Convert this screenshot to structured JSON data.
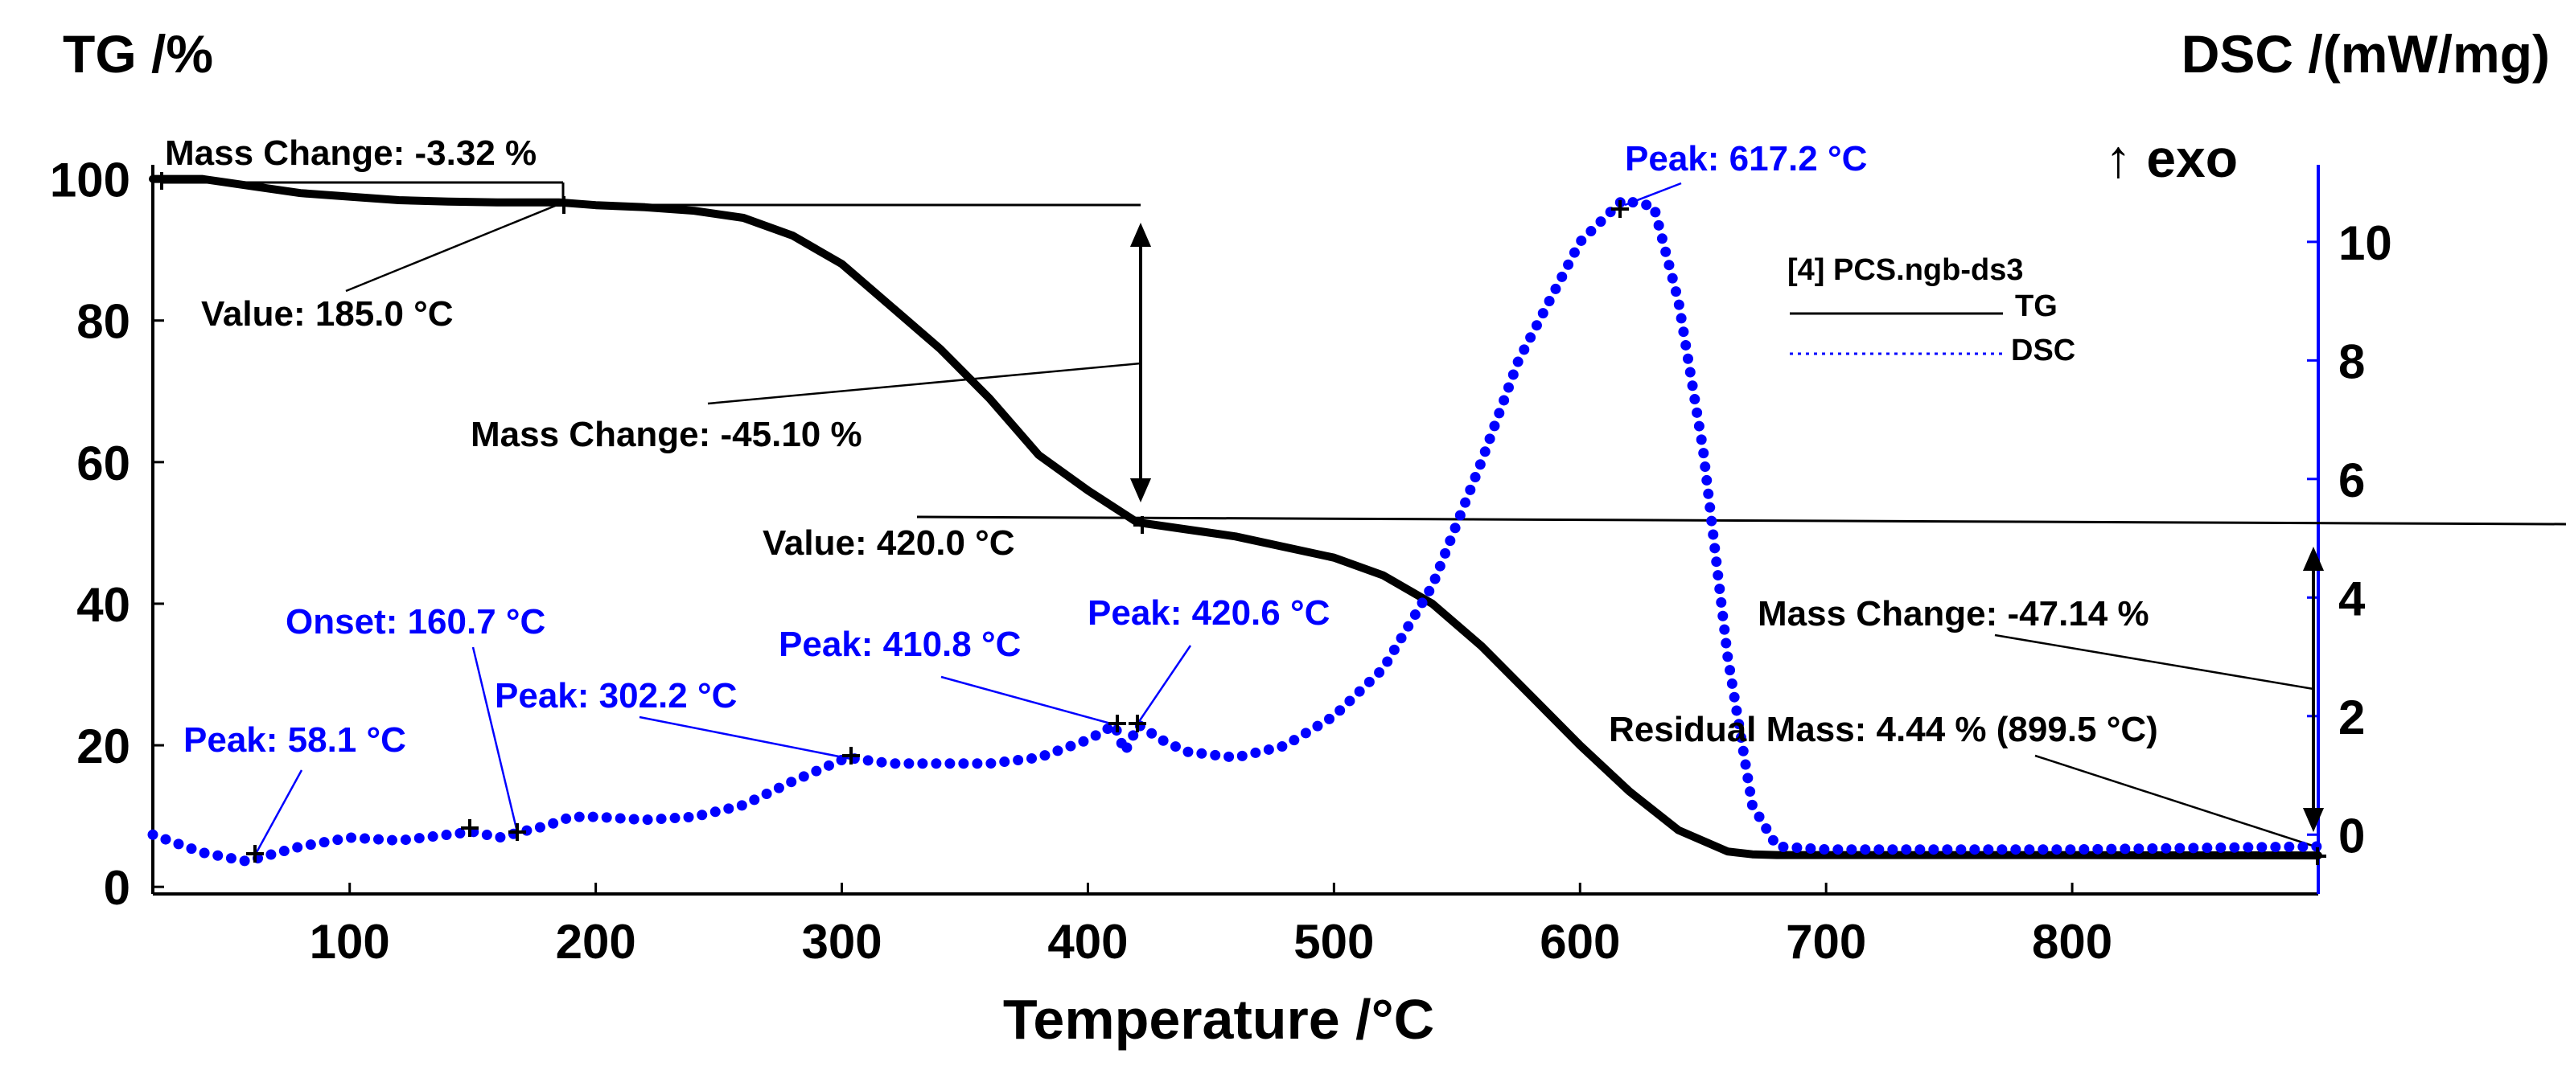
{
  "chart_data": {
    "type": "line",
    "title": "",
    "xlabel": "Temperature /°C",
    "ylabel_left": "TG /%",
    "ylabel_right": "DSC /(mW/mg)",
    "exo_label": "↑ exo",
    "xlim": [
      20,
      900
    ],
    "ylim_left": [
      -1,
      102
    ],
    "ylim_right": [
      -1.0,
      11.3
    ],
    "x_ticks": [
      100,
      200,
      300,
      400,
      500,
      600,
      700,
      800
    ],
    "x_tick_labels": [
      "100",
      "200",
      "300",
      "400",
      "500",
      "600",
      "700",
      "800"
    ],
    "y_left_ticks": [
      0,
      20,
      40,
      60,
      80,
      100
    ],
    "y_left_tick_labels": [
      "0",
      "20",
      "40",
      "60",
      "80",
      "100"
    ],
    "y_right_ticks": [
      0,
      2,
      4,
      6,
      8,
      10
    ],
    "y_right_tick_labels": [
      "0",
      "2",
      "4",
      "6",
      "8",
      "10"
    ],
    "legend": {
      "title": "[4] PCS.ngb-ds3",
      "entries": [
        {
          "name": "TG",
          "style": "solid",
          "color": "#000000"
        },
        {
          "name": "DSC",
          "style": "dotted",
          "color": "#0000ff"
        }
      ]
    },
    "series": [
      {
        "name": "TG",
        "axis": "left",
        "color": "#000000",
        "x": [
          20,
          40,
          60,
          80,
          100,
          120,
          140,
          160,
          185,
          200,
          220,
          240,
          260,
          280,
          300,
          320,
          340,
          360,
          380,
          400,
          420,
          440,
          460,
          480,
          500,
          520,
          540,
          560,
          580,
          600,
          620,
          640,
          660,
          670,
          680,
          700,
          750,
          800,
          850,
          900
        ],
        "values": [
          100,
          100,
          99,
          98,
          97.5,
          97,
          96.8,
          96.7,
          96.7,
          96.3,
          96,
          95.5,
          94.5,
          92,
          88,
          82,
          76,
          69,
          61,
          56,
          51.5,
          50.5,
          49.5,
          48,
          46.5,
          44,
          40,
          34,
          27,
          20,
          13.5,
          8,
          5,
          4.6,
          4.5,
          4.5,
          4.5,
          4.5,
          4.45,
          4.44
        ]
      },
      {
        "name": "DSC",
        "axis": "right",
        "color": "#0000ff",
        "x": [
          20,
          40,
          58.1,
          80,
          100,
          120,
          140,
          150,
          160.7,
          170,
          180,
          190,
          200,
          220,
          240,
          260,
          280,
          302.2,
          320,
          340,
          360,
          380,
          400,
          410.8,
          415,
          420.6,
          430,
          440,
          460,
          480,
          500,
          520,
          540,
          560,
          575,
          590,
          600,
          617.2,
          630,
          640,
          650,
          660,
          670,
          680,
          700,
          800,
          900
        ],
        "values": [
          0,
          -0.3,
          -0.45,
          -0.2,
          -0.05,
          -0.1,
          0,
          0.05,
          -0.05,
          0.05,
          0.15,
          0.3,
          0.3,
          0.25,
          0.3,
          0.5,
          0.9,
          1.3,
          1.2,
          1.2,
          1.2,
          1.3,
          1.6,
          1.85,
          1.4,
          1.85,
          1.6,
          1.4,
          1.3,
          1.5,
          2.0,
          2.8,
          4.2,
          6.3,
          8.0,
          9.2,
          10.0,
          10.7,
          10.6,
          9.0,
          6.5,
          3.0,
          0.5,
          -0.2,
          -0.25,
          -0.25,
          -0.2
        ]
      }
    ],
    "annotations": [
      {
        "text": "Mass Change: -3.32 %",
        "color": "black"
      },
      {
        "text": "Value: 185.0 °C",
        "color": "black"
      },
      {
        "text": "Mass Change: -45.10 %",
        "color": "black"
      },
      {
        "text": "Value: 420.0 °C",
        "color": "black"
      },
      {
        "text": "Mass Change: -47.14 %",
        "color": "black"
      },
      {
        "text": "Residual Mass: 4.44 % (899.5 °C)",
        "color": "black"
      },
      {
        "text": "Peak: 617.2 °C",
        "color": "blue"
      },
      {
        "text": "Onset: 160.7 °C",
        "color": "blue"
      },
      {
        "text": "Peak: 58.1 °C",
        "color": "blue"
      },
      {
        "text": "Peak: 302.2 °C",
        "color": "blue"
      },
      {
        "text": "Peak: 410.8 °C",
        "color": "blue"
      },
      {
        "text": "Peak: 420.6 °C",
        "color": "blue"
      }
    ]
  }
}
